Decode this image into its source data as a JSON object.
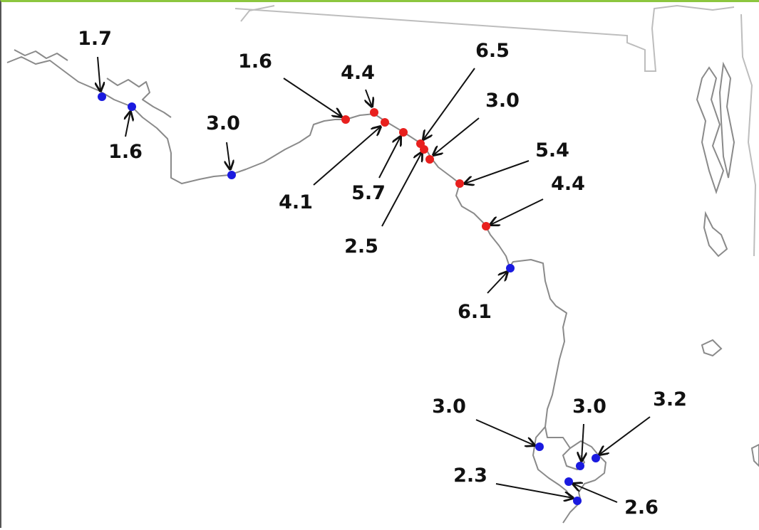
{
  "map": {
    "colors": {
      "red_marker": "#e8201e",
      "blue_marker": "#1a1adf",
      "coast": "#8a8a8a",
      "border": "#bdbdbd",
      "arrow": "#111111"
    },
    "markers": [
      {
        "id": "m1",
        "value": "1.7",
        "color": "blue"
      },
      {
        "id": "m2",
        "value": "1.6",
        "color": "blue"
      },
      {
        "id": "m3",
        "value": "3.0",
        "color": "blue"
      },
      {
        "id": "m4",
        "value": "1.6",
        "color": "red"
      },
      {
        "id": "m5",
        "value": "4.4",
        "color": "red"
      },
      {
        "id": "m6",
        "value": "4.1",
        "color": "red"
      },
      {
        "id": "m7",
        "value": "5.7",
        "color": "red"
      },
      {
        "id": "m8",
        "value": "6.5",
        "color": "red"
      },
      {
        "id": "m9",
        "value": "2.5",
        "color": "red"
      },
      {
        "id": "m10",
        "value": "3.0",
        "color": "red"
      },
      {
        "id": "m11",
        "value": "5.4",
        "color": "red"
      },
      {
        "id": "m12",
        "value": "4.4",
        "color": "red"
      },
      {
        "id": "m13",
        "value": "6.1",
        "color": "blue"
      },
      {
        "id": "m14",
        "value": "3.0",
        "color": "blue"
      },
      {
        "id": "m15",
        "value": "3.0",
        "color": "blue"
      },
      {
        "id": "m16",
        "value": "3.2",
        "color": "blue"
      },
      {
        "id": "m17",
        "value": "2.6",
        "color": "blue"
      },
      {
        "id": "m18",
        "value": "2.3",
        "color": "blue"
      }
    ]
  }
}
